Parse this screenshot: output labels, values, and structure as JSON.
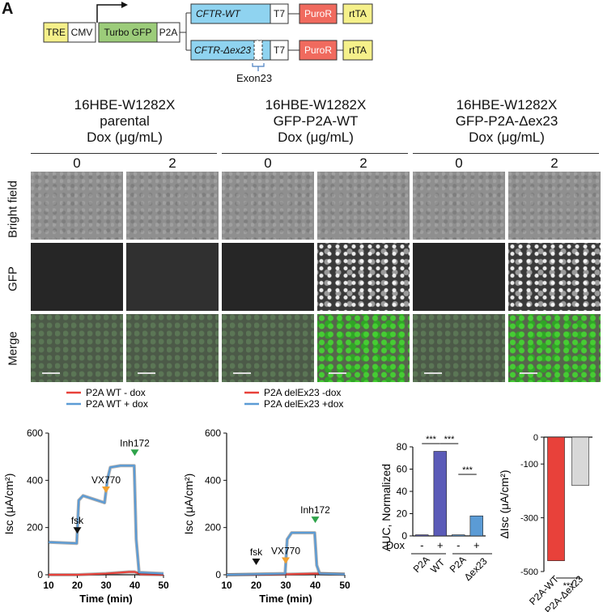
{
  "panel_label": "A",
  "construct": {
    "tre": "TRE",
    "cmv": "CMV",
    "gfp": "Turbo GFP",
    "p2a": "P2A",
    "cftr_wt": "CFTR-WT",
    "cftr_del": "CFTR-Δex23",
    "t7": "T7",
    "puro": "PuroR",
    "rtta": "rtTA",
    "exon": "Exon23",
    "colors": {
      "tre": "#f5f08a",
      "gfp": "#9ccc7a",
      "cftr": "#8fd3f0",
      "puro": "#f06a5e",
      "rtta": "#f5f08a"
    }
  },
  "groups": [
    {
      "line1": "16HBE-W1282X",
      "line2": "parental",
      "line3": "Dox (μg/mL)"
    },
    {
      "line1": "16HBE-W1282X",
      "line2": "GFP-P2A-WT",
      "line3": "Dox (μg/mL)"
    },
    {
      "line1": "16HBE-W1282X",
      "line2": "GFP-P2A-Δex23",
      "line3": "Dox (μg/mL)"
    }
  ],
  "doses": [
    "0",
    "2",
    "0",
    "2",
    "0",
    "2"
  ],
  "rows": [
    "Bright field",
    "GFP",
    "Merge"
  ],
  "chart_data": [
    {
      "type": "line",
      "ylabel": "Isc (μA/cm²)",
      "xlabel": "Time (min)",
      "xlim": [
        10,
        50
      ],
      "ylim": [
        0,
        600
      ],
      "xticks": [
        "10",
        "20",
        "30",
        "40",
        "50"
      ],
      "yticks": [
        "0",
        "200",
        "400",
        "600"
      ],
      "annotations": [
        {
          "text": "fsk",
          "x": 20
        },
        {
          "text": "VX770",
          "x": 30
        },
        {
          "text": "Inh172",
          "x": 40
        }
      ],
      "series": [
        {
          "name": "P2A WT - dox",
          "color": "#e8413a",
          "x": [
            10,
            20,
            30,
            38,
            40,
            42,
            50
          ],
          "y": [
            0,
            0,
            5,
            12,
            12,
            2,
            0
          ]
        },
        {
          "name": "P2A WT + dox",
          "color": "#5b9bd5",
          "x": [
            10,
            19.8,
            20.5,
            22,
            29.5,
            30.5,
            31.5,
            35,
            39.8,
            40.5,
            41.5,
            50
          ],
          "y": [
            138,
            133,
            315,
            335,
            305,
            405,
            455,
            462,
            462,
            150,
            10,
            5
          ]
        }
      ]
    },
    {
      "type": "line",
      "ylabel": "Isc (μA/cm²)",
      "xlabel": "Time (min)",
      "xlim": [
        10,
        50
      ],
      "ylim": [
        0,
        600
      ],
      "xticks": [
        "10",
        "20",
        "30",
        "40",
        "50"
      ],
      "yticks": [
        "0",
        "200",
        "400",
        "600"
      ],
      "annotations": [
        {
          "text": "fsk",
          "x": 20
        },
        {
          "text": "VX770",
          "x": 30
        },
        {
          "text": "Inh172",
          "x": 40
        }
      ],
      "series": [
        {
          "name": "P2A delEx23 -dox",
          "color": "#e8413a",
          "x": [
            10,
            30,
            40,
            50
          ],
          "y": [
            0,
            2,
            5,
            2
          ]
        },
        {
          "name": "P2A delEx23 +dox",
          "color": "#5b9bd5",
          "x": [
            10,
            29.8,
            30.5,
            32,
            39.8,
            40.5,
            41.5,
            50
          ],
          "y": [
            0,
            5,
            150,
            178,
            178,
            40,
            5,
            2
          ]
        }
      ]
    },
    {
      "type": "bar",
      "ylabel": "AUC, Normalized",
      "ylim": [
        0,
        80
      ],
      "yticks": [
        "0",
        "20",
        "40",
        "60",
        "80"
      ],
      "categories": [
        "P2A WT -",
        "P2A WT +",
        "P2A Δex23 -",
        "P2A Δex23 +"
      ],
      "values": [
        1,
        76,
        1,
        18
      ],
      "colors": [
        "#5b5bb8",
        "#5b5bb8",
        "#5b9bd5",
        "#5b9bd5"
      ],
      "dox_label": "Dox",
      "dox_signs": [
        "-",
        "+",
        "-",
        "+"
      ],
      "group_labels": [
        "P2A",
        "WT",
        "P2A",
        "Δex23"
      ],
      "sig": [
        "***",
        "***",
        "***"
      ]
    },
    {
      "type": "bar",
      "ylabel": "ΔIsc (μA/cm²)",
      "ylim": [
        -500,
        0
      ],
      "yticks": [
        "0",
        "-100",
        "-300",
        "-500"
      ],
      "categories": [
        "P2A-WT",
        "P2A-Δex23"
      ],
      "values": [
        -460,
        -180
      ],
      "colors": [
        "#e8413a",
        "#d8d8d8"
      ],
      "sig": "***"
    }
  ]
}
